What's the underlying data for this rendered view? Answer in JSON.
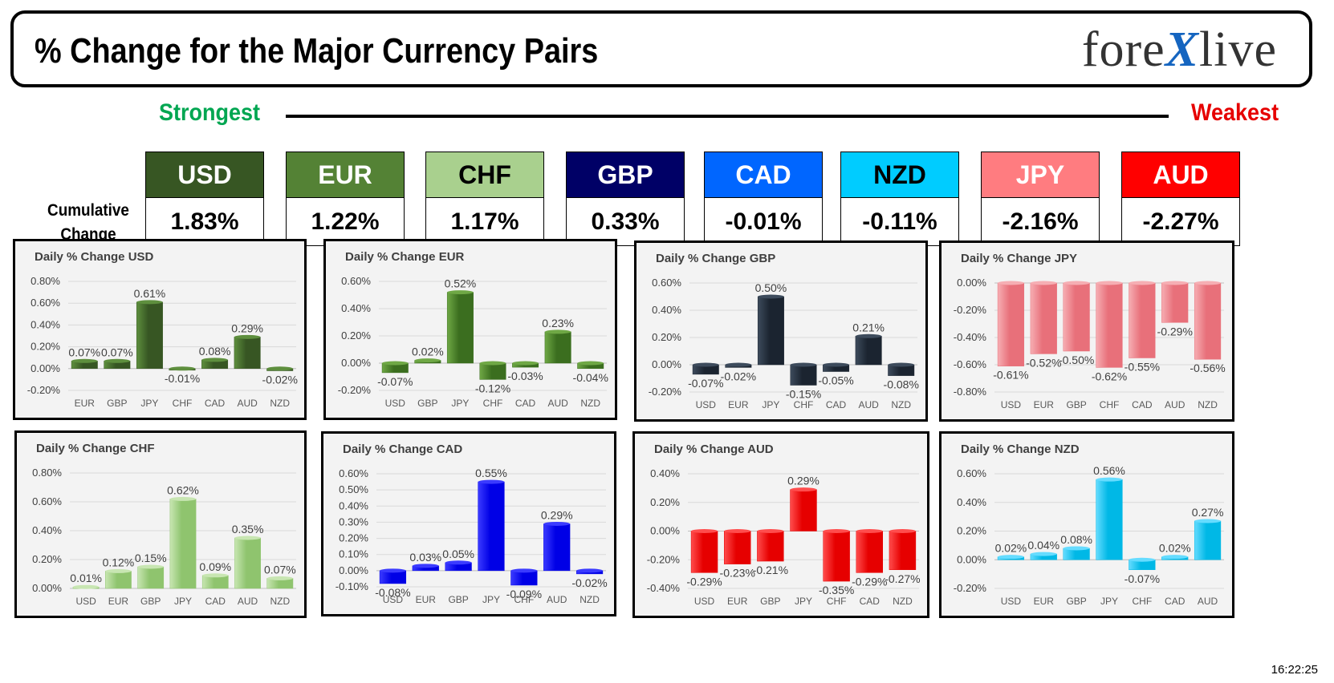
{
  "header": {
    "title": "% Change for the Major Currency Pairs",
    "logo_left": "fore",
    "logo_x": "X",
    "logo_right": "live"
  },
  "ranking": {
    "strongest_label": "Strongest",
    "weakest_label": "Weakest",
    "cumulative_label_line1": "Cumulative",
    "cumulative_label_line2": "Change",
    "currencies": [
      {
        "code": "USD",
        "value": "1.83%",
        "bg": "#375623",
        "fg": "#ffffff"
      },
      {
        "code": "EUR",
        "value": "1.22%",
        "bg": "#548235",
        "fg": "#ffffff"
      },
      {
        "code": "CHF",
        "value": "1.17%",
        "bg": "#a9d08e",
        "fg": "#000000"
      },
      {
        "code": "GBP",
        "value": "0.33%",
        "bg": "#000066",
        "fg": "#ffffff"
      },
      {
        "code": "CAD",
        "value": "-0.01%",
        "bg": "#0066ff",
        "fg": "#ffffff"
      },
      {
        "code": "NZD",
        "value": "-0.11%",
        "bg": "#00ccff",
        "fg": "#000000"
      },
      {
        "code": "JPY",
        "value": "-2.16%",
        "bg": "#ff7c80",
        "fg": "#ffffff"
      },
      {
        "code": "AUD",
        "value": "-2.27%",
        "bg": "#ff0000",
        "fg": "#ffffff"
      }
    ]
  },
  "timestamp": "16:22:25",
  "chart_data": [
    {
      "type": "bar",
      "title": "Daily % Change USD",
      "color": "#375623",
      "light": "#5e8f3e",
      "categories": [
        "EUR",
        "GBP",
        "JPY",
        "CHF",
        "CAD",
        "AUD",
        "NZD"
      ],
      "values": [
        0.07,
        0.07,
        0.61,
        -0.01,
        0.08,
        0.29,
        -0.02
      ],
      "labels": [
        "0.07%",
        "0.07%",
        "0.61%",
        "-0.01%",
        "0.08%",
        "0.29%",
        "-0.02%"
      ],
      "ylim": [
        -0.2,
        0.8
      ],
      "ticks": [
        -0.2,
        0,
        0.2,
        0.4,
        0.6,
        0.8
      ],
      "tick_labels": [
        "-0.20%",
        "0.00%",
        "0.20%",
        "0.40%",
        "0.60%",
        "0.80%"
      ]
    },
    {
      "type": "bar",
      "title": "Daily % Change EUR",
      "color": "#3b6e1f",
      "light": "#6fa845",
      "categories": [
        "USD",
        "GBP",
        "JPY",
        "CHF",
        "CAD",
        "AUD",
        "NZD"
      ],
      "values": [
        -0.07,
        0.02,
        0.52,
        -0.12,
        -0.03,
        0.23,
        -0.04
      ],
      "labels": [
        "-0.07%",
        "0.02%",
        "0.52%",
        "-0.12%",
        "-0.03%",
        "0.23%",
        "-0.04%"
      ],
      "ylim": [
        -0.2,
        0.6
      ],
      "ticks": [
        -0.2,
        0,
        0.2,
        0.4,
        0.6
      ],
      "tick_labels": [
        "-0.20%",
        "0.00%",
        "0.20%",
        "0.40%",
        "0.60%"
      ]
    },
    {
      "type": "bar",
      "title": "Daily % Change GBP",
      "color": "#1b2430",
      "light": "#3d4b5c",
      "categories": [
        "USD",
        "EUR",
        "JPY",
        "CHF",
        "CAD",
        "AUD",
        "NZD"
      ],
      "values": [
        -0.07,
        -0.02,
        0.5,
        -0.15,
        -0.05,
        0.21,
        -0.08
      ],
      "labels": [
        "-0.07%",
        "-0.02%",
        "0.50%",
        "-0.15%",
        "-0.05%",
        "0.21%",
        "-0.08%"
      ],
      "ylim": [
        -0.2,
        0.6
      ],
      "ticks": [
        -0.2,
        0,
        0.2,
        0.4,
        0.6
      ],
      "tick_labels": [
        "-0.20%",
        "0.00%",
        "0.20%",
        "0.40%",
        "0.60%"
      ]
    },
    {
      "type": "bar",
      "title": "Daily % Change JPY",
      "color": "#e8707a",
      "light": "#f6aeb3",
      "categories": [
        "USD",
        "EUR",
        "GBP",
        "CHF",
        "CAD",
        "AUD",
        "NZD"
      ],
      "values": [
        -0.61,
        -0.52,
        -0.5,
        -0.62,
        -0.55,
        -0.29,
        -0.56
      ],
      "labels": [
        "-0.61%",
        "-0.52%",
        "-0.50%",
        "-0.62%",
        "-0.55%",
        "-0.29%",
        "-0.56%"
      ],
      "ylim": [
        -0.8,
        0
      ],
      "ticks": [
        -0.8,
        -0.6,
        -0.4,
        -0.2,
        0
      ],
      "tick_labels": [
        "-0.80%",
        "-0.60%",
        "-0.40%",
        "-0.20%",
        "0.00%"
      ]
    },
    {
      "type": "bar",
      "title": "Daily % Change CHF",
      "color": "#8fc46e",
      "light": "#c8e6b2",
      "categories": [
        "USD",
        "EUR",
        "GBP",
        "JPY",
        "CAD",
        "AUD",
        "NZD"
      ],
      "values": [
        0.01,
        0.12,
        0.15,
        0.62,
        0.09,
        0.35,
        0.07
      ],
      "labels": [
        "0.01%",
        "0.12%",
        "0.15%",
        "0.62%",
        "0.09%",
        "0.35%",
        "0.07%"
      ],
      "ylim": [
        0,
        0.8
      ],
      "ticks": [
        0,
        0.2,
        0.4,
        0.6,
        0.8
      ],
      "tick_labels": [
        "0.00%",
        "0.20%",
        "0.40%",
        "0.60%",
        "0.80%"
      ]
    },
    {
      "type": "bar",
      "title": "Daily % Change CAD",
      "color": "#0000e6",
      "light": "#3b3bff",
      "categories": [
        "USD",
        "EUR",
        "GBP",
        "JPY",
        "CHF",
        "AUD",
        "NZD"
      ],
      "values": [
        -0.08,
        0.03,
        0.05,
        0.55,
        -0.09,
        0.29,
        -0.02
      ],
      "labels": [
        "-0.08%",
        "0.03%",
        "0.05%",
        "0.55%",
        "-0.09%",
        "0.29%",
        "-0.02%"
      ],
      "ylim": [
        -0.1,
        0.6
      ],
      "ticks": [
        -0.1,
        0,
        0.1,
        0.2,
        0.3,
        0.4,
        0.5,
        0.6
      ],
      "tick_labels": [
        "-0.10%",
        "0.00%",
        "0.10%",
        "0.20%",
        "0.30%",
        "0.40%",
        "0.50%",
        "0.60%"
      ]
    },
    {
      "type": "bar",
      "title": "Daily % Change AUD",
      "color": "#e60000",
      "light": "#ff4d4d",
      "categories": [
        "USD",
        "EUR",
        "GBP",
        "JPY",
        "CHF",
        "CAD",
        "NZD"
      ],
      "values": [
        -0.29,
        -0.23,
        -0.21,
        0.29,
        -0.35,
        -0.29,
        -0.27
      ],
      "labels": [
        "-0.29%",
        "-0.23%",
        "-0.21%",
        "0.29%",
        "-0.35%",
        "-0.29%",
        "-0.27%"
      ],
      "ylim": [
        -0.4,
        0.4
      ],
      "ticks": [
        -0.4,
        -0.2,
        0,
        0.2,
        0.4
      ],
      "tick_labels": [
        "-0.40%",
        "-0.20%",
        "0.00%",
        "0.20%",
        "0.40%"
      ]
    },
    {
      "type": "bar",
      "title": "Daily % Change NZD",
      "color": "#00b8e6",
      "light": "#66dcff",
      "categories": [
        "USD",
        "EUR",
        "GBP",
        "JPY",
        "CHF",
        "CAD",
        "AUD"
      ],
      "values": [
        0.02,
        0.04,
        0.08,
        0.56,
        -0.07,
        0.02,
        0.27
      ],
      "labels": [
        "0.02%",
        "0.04%",
        "0.08%",
        "0.56%",
        "-0.07%",
        "0.02%",
        "0.27%"
      ],
      "ylim": [
        -0.2,
        0.6
      ],
      "ticks": [
        -0.2,
        0,
        0.2,
        0.4,
        0.6
      ],
      "tick_labels": [
        "-0.20%",
        "0.00%",
        "0.20%",
        "0.40%",
        "0.60%"
      ]
    }
  ]
}
